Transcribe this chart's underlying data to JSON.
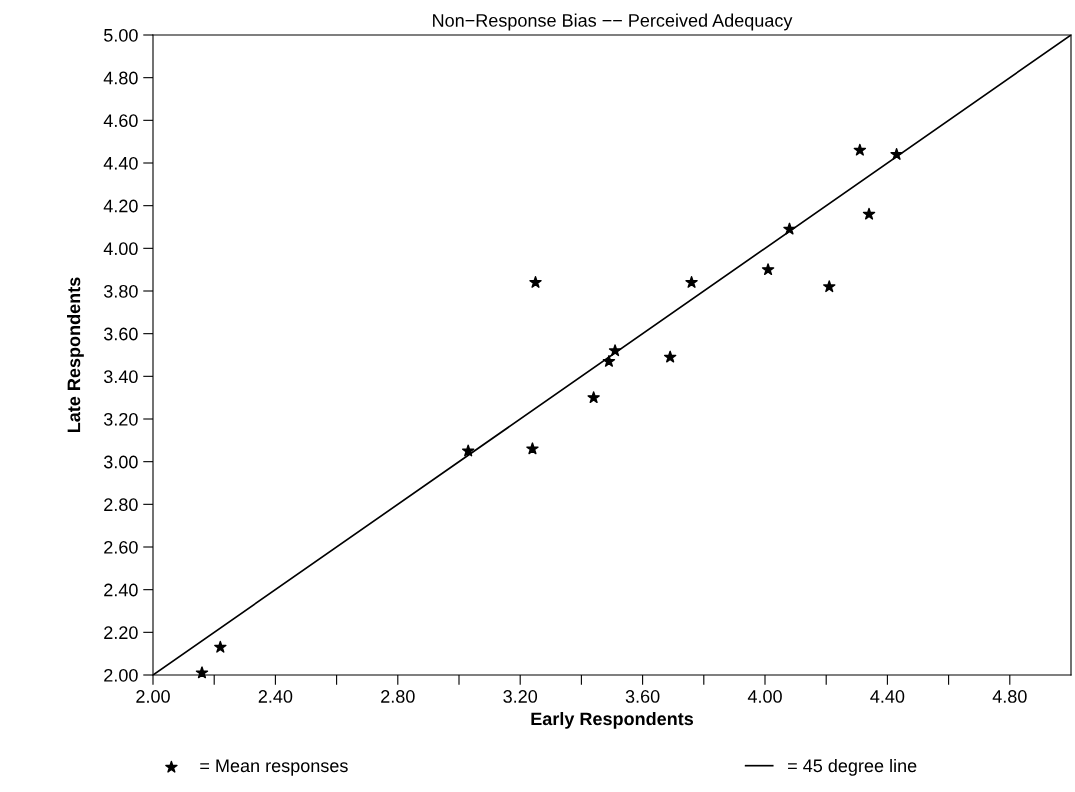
{
  "chart_data": {
    "type": "scatter",
    "title": "Non−Response Bias −− Perceived Adequacy",
    "xlabel": "Early Respondents",
    "ylabel": "Late Respondents",
    "xlim": [
      2.0,
      5.0
    ],
    "ylim": [
      2.0,
      5.0
    ],
    "xticks": [
      {
        "value": 2.0,
        "label": "2.00"
      },
      {
        "value": 2.2,
        "label": null
      },
      {
        "value": 2.4,
        "label": "2.40"
      },
      {
        "value": 2.6,
        "label": null
      },
      {
        "value": 2.8,
        "label": "2.80"
      },
      {
        "value": 3.0,
        "label": null
      },
      {
        "value": 3.2,
        "label": "3.20"
      },
      {
        "value": 3.4,
        "label": null
      },
      {
        "value": 3.6,
        "label": "3.60"
      },
      {
        "value": 3.8,
        "label": null
      },
      {
        "value": 4.0,
        "label": "4.00"
      },
      {
        "value": 4.2,
        "label": null
      },
      {
        "value": 4.4,
        "label": "4.40"
      },
      {
        "value": 4.6,
        "label": null
      },
      {
        "value": 4.8,
        "label": "4.80"
      }
    ],
    "yticks": [
      {
        "value": 2.0,
        "label": "2.00"
      },
      {
        "value": 2.2,
        "label": "2.20"
      },
      {
        "value": 2.4,
        "label": "2.40"
      },
      {
        "value": 2.6,
        "label": "2.60"
      },
      {
        "value": 2.8,
        "label": "2.80"
      },
      {
        "value": 3.0,
        "label": "3.00"
      },
      {
        "value": 3.2,
        "label": "3.20"
      },
      {
        "value": 3.4,
        "label": "3.40"
      },
      {
        "value": 3.6,
        "label": "3.60"
      },
      {
        "value": 3.8,
        "label": "3.80"
      },
      {
        "value": 4.0,
        "label": "4.00"
      },
      {
        "value": 4.2,
        "label": "4.20"
      },
      {
        "value": 4.4,
        "label": "4.40"
      },
      {
        "value": 4.6,
        "label": "4.60"
      },
      {
        "value": 4.8,
        "label": "4.80"
      },
      {
        "value": 5.0,
        "label": "5.00"
      }
    ],
    "grid": false,
    "legend": "bottom",
    "series": [
      {
        "name": "= Mean responses",
        "marker": "star",
        "color": "#000000",
        "x": [
          2.16,
          2.22,
          3.03,
          3.24,
          3.25,
          3.44,
          3.49,
          3.51,
          3.69,
          3.76,
          4.01,
          4.08,
          4.21,
          4.31,
          4.34,
          4.43
        ],
        "values": [
          2.01,
          2.13,
          3.05,
          3.06,
          3.84,
          3.3,
          3.47,
          3.52,
          3.49,
          3.84,
          3.9,
          4.09,
          3.82,
          4.46,
          4.16,
          4.44
        ]
      },
      {
        "name": "= 45 degree line",
        "type": "line",
        "marker": "none",
        "line_style": "solid",
        "color": "#000000",
        "x": [
          2.0,
          5.0
        ],
        "values": [
          2.0,
          5.0
        ]
      }
    ]
  }
}
